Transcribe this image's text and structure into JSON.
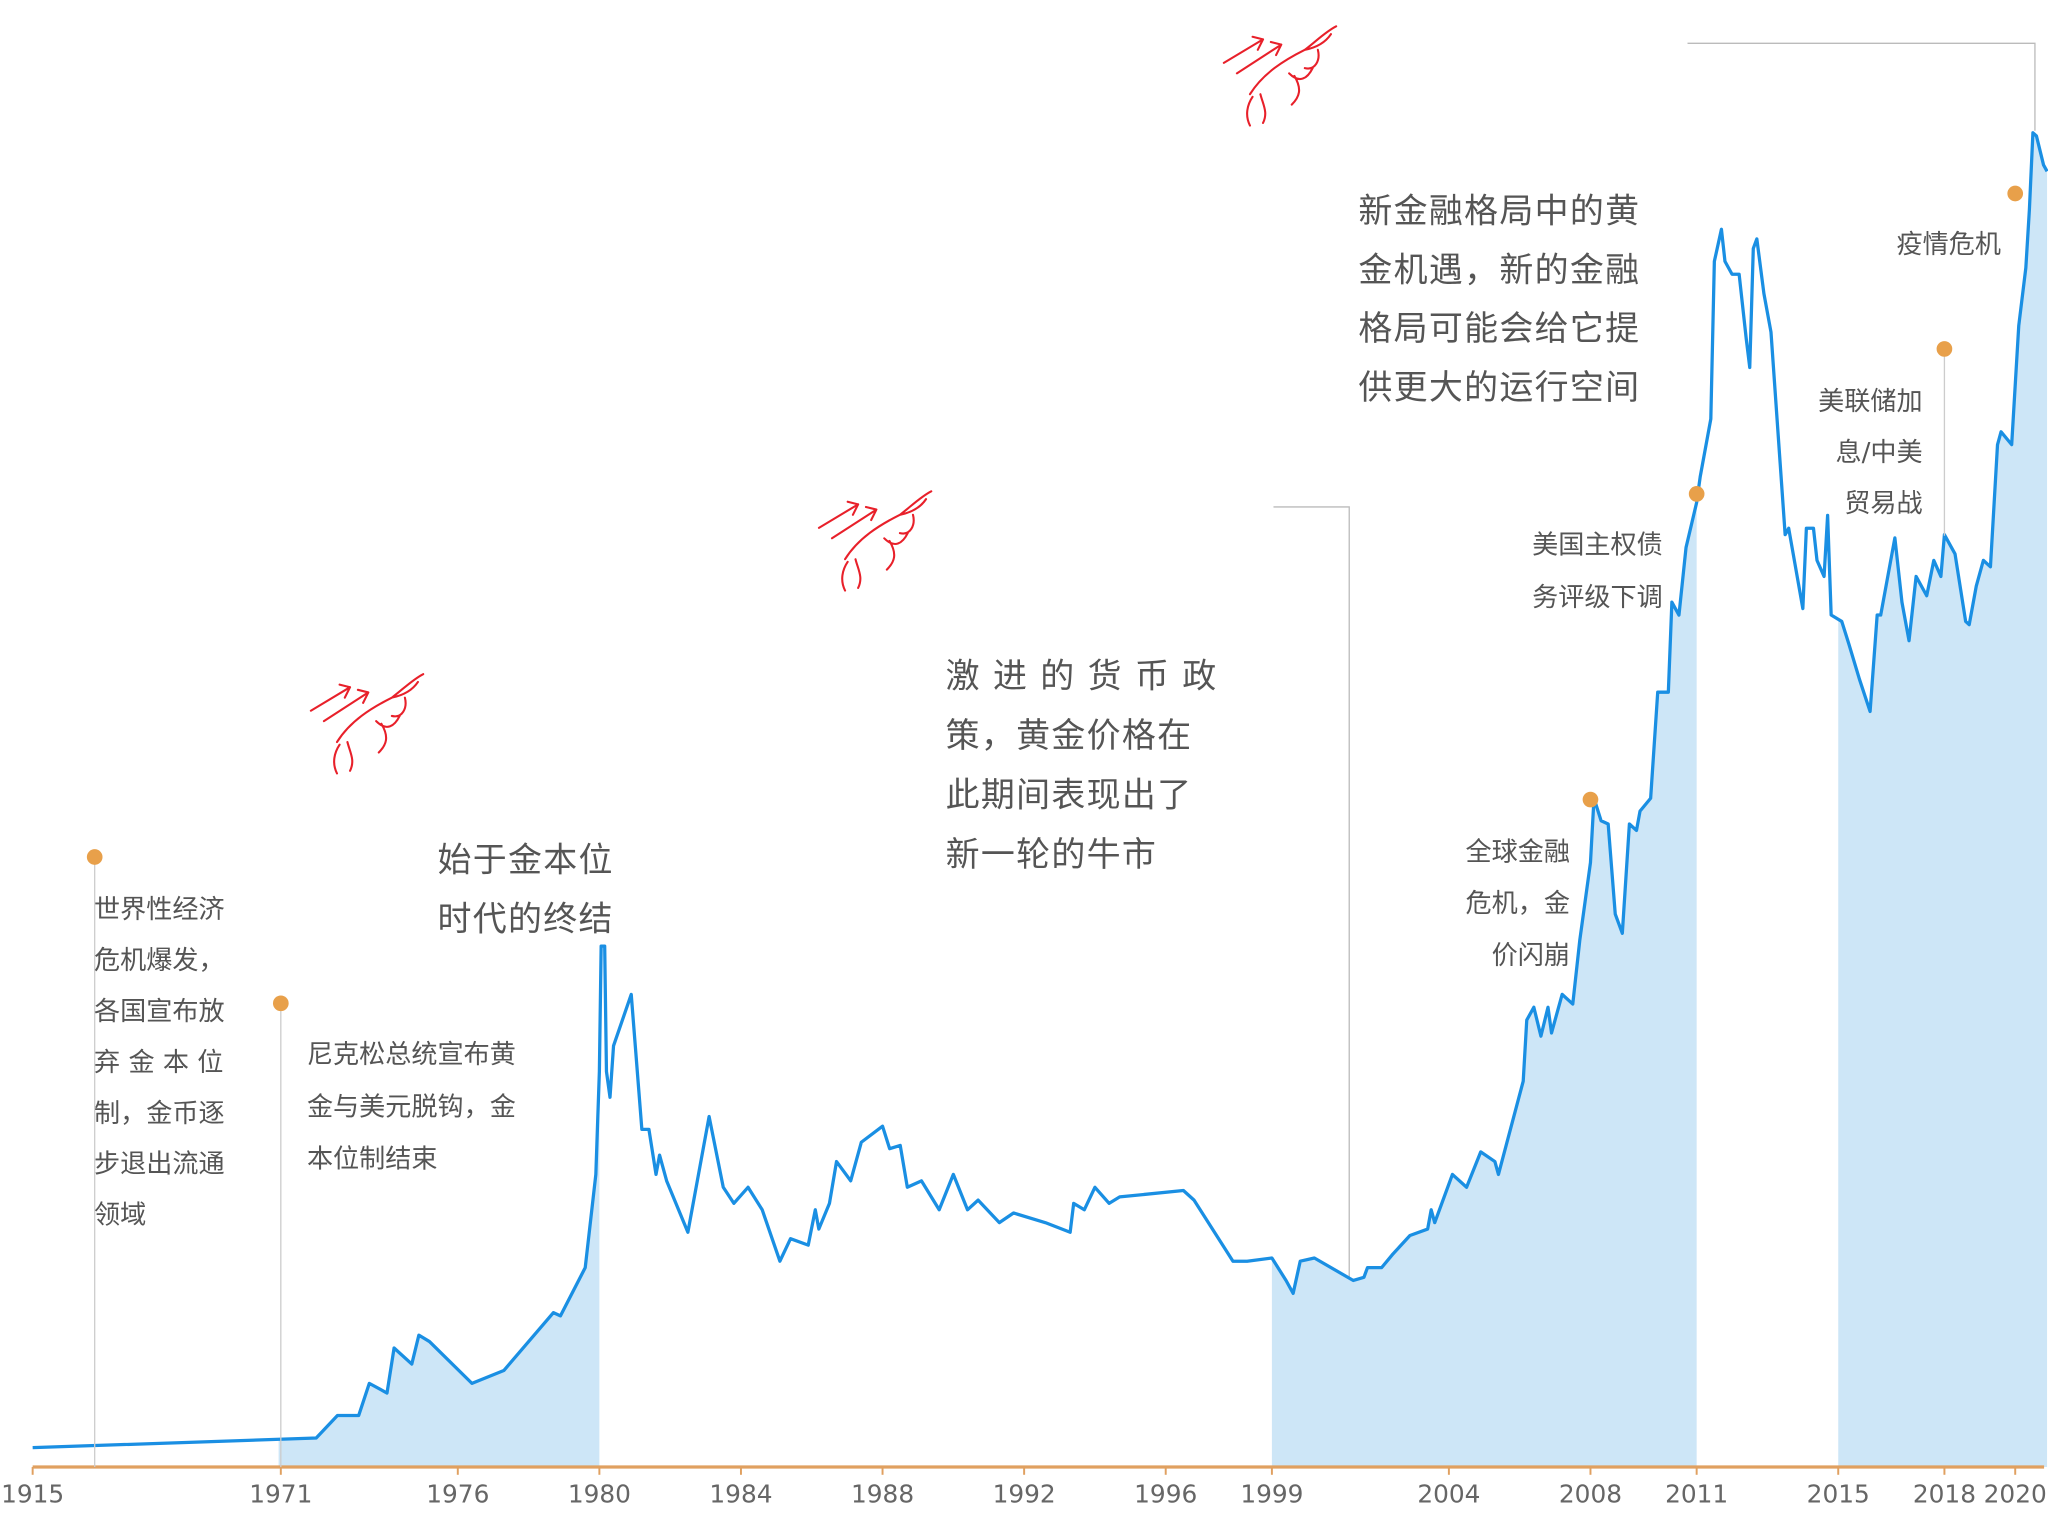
{
  "chart_data": {
    "type": "line",
    "x": [
      1915,
      1972.0,
      1972.6,
      1973.2,
      1973.5,
      1974.0,
      1974.2,
      1974.7,
      1974.9,
      1975.2,
      1976.4,
      1977.3,
      1978.7,
      1978.9,
      1979.6,
      1979.9,
      1980.0,
      1980.05,
      1980.15,
      1980.2,
      1980.3,
      1980.4,
      1980.9,
      1981.2,
      1981.4,
      1981.6,
      1981.7,
      1981.9,
      1982.5,
      1983.1,
      1983.5,
      1983.8,
      1984.2,
      1984.6,
      1985.1,
      1985.4,
      1985.9,
      1986.1,
      1986.2,
      1986.5,
      1986.7,
      1987.1,
      1987.4,
      1988.0,
      1988.2,
      1988.5,
      1988.7,
      1989.1,
      1989.6,
      1990.0,
      1990.4,
      1990.7,
      1991.3,
      1991.7,
      1992.6,
      1993.3,
      1993.4,
      1993.7,
      1994.0,
      1994.4,
      1994.7,
      1996.5,
      1996.8,
      1997.9,
      1998.3,
      1999.0,
      1999.4,
      1999.6,
      1999.8,
      2000.2,
      2001.3,
      2001.6,
      2001.7,
      2002.1,
      2002.4,
      2002.9,
      2003.4,
      2003.5,
      2003.6,
      2004.1,
      2004.5,
      2004.9,
      2005.3,
      2005.4,
      2006.1,
      2006.2,
      2006.4,
      2006.6,
      2006.8,
      2006.9,
      2007.2,
      2007.5,
      2007.7,
      2008.0,
      2008.1,
      2008.3,
      2008.5,
      2008.7,
      2008.9,
      2009.1,
      2009.3,
      2009.4,
      2009.7,
      2009.9,
      2010.2,
      2010.3,
      2010.5,
      2010.7,
      2011.0,
      2011.1,
      2011.4,
      2011.5,
      2011.7,
      2011.8,
      2012.0,
      2012.2,
      2012.4,
      2012.5,
      2012.6,
      2012.7,
      2012.9,
      2013.1,
      2013.5,
      2013.6,
      2014.0,
      2014.1,
      2014.3,
      2014.4,
      2014.6,
      2014.7,
      2014.8,
      2015.1,
      2015.3,
      2015.6,
      2015.9,
      2016.1,
      2016.2,
      2016.6,
      2016.8,
      2017.0,
      2017.2,
      2017.5,
      2017.7,
      2017.9,
      2018.0,
      2018.3,
      2018.6,
      2018.7,
      2018.9,
      2019.1,
      2019.3,
      2019.5,
      2019.6,
      2019.9,
      2020.1,
      2020.3,
      2020.4,
      2020.5,
      2020.6,
      2020.8,
      2020.9
    ],
    "series": [
      {
        "color": "#1a8fe3",
        "values": [
          30,
          45,
          80,
          80,
          130,
          115,
          185,
          160,
          205,
          195,
          130,
          150,
          240,
          235,
          310,
          455,
          615,
          810,
          810,
          615,
          575,
          655,
          735,
          525,
          525,
          455,
          485,
          445,
          365,
          545,
          435,
          410,
          435,
          400,
          320,
          355,
          345,
          400,
          370,
          410,
          475,
          445,
          505,
          530,
          495,
          500,
          435,
          445,
          400,
          455,
          400,
          415,
          380,
          395,
          380,
          365,
          410,
          400,
          435,
          410,
          420,
          430,
          415,
          320,
          320,
          325,
          290,
          270,
          320,
          325,
          290,
          295,
          310,
          310,
          330,
          360,
          370,
          400,
          380,
          455,
          435,
          490,
          475,
          455,
          600,
          695,
          715,
          670,
          715,
          675,
          735,
          720,
          820,
          940,
          1040,
          1005,
          1000,
          860,
          830,
          1000,
          990,
          1020,
          1040,
          1205,
          1205,
          1345,
          1325,
          1430,
          1500,
          1540,
          1630,
          1875,
          1925,
          1875,
          1855,
          1855,
          1755,
          1710,
          1895,
          1910,
          1825,
          1765,
          1450,
          1460,
          1335,
          1460,
          1460,
          1410,
          1385,
          1480,
          1325,
          1315,
          1280,
          1225,
          1175,
          1325,
          1325,
          1445,
          1345,
          1285,
          1385,
          1355,
          1410,
          1385,
          1450,
          1420,
          1315,
          1310,
          1370,
          1410,
          1400,
          1590,
          1610,
          1590,
          1775,
          1865,
          1955,
          2075,
          2070,
          2025,
          2015
        ]
      }
    ],
    "shaded_color": "#cde6f7",
    "shaded": [
      [
        1970.5,
        1980.0
      ],
      [
        1999.0,
        2011.0
      ],
      [
        2015.0,
        2021.0
      ]
    ],
    "xlim": [
      1915,
      2021
    ],
    "xticks": [
      1915,
      1971,
      1976,
      1980,
      1984,
      1988,
      1992,
      1996,
      1999,
      2004,
      2008,
      2011,
      2015,
      2018,
      2020
    ],
    "ylim": [
      0,
      2200
    ],
    "axis_color": "#e0a060",
    "events": [
      {
        "x": 1929,
        "label": [
          "世界性经济",
          "危机爆发，",
          "各国宣布放",
          "弃 金 本 位",
          "制，金币逐",
          "步退出流通",
          "领域"
        ]
      },
      {
        "x": 1971,
        "label": [
          "尼克松总统宣布黄",
          "金与美元脱钩，金",
          "本位制结束"
        ]
      },
      {
        "x": 2008,
        "label": [
          "全球金融",
          "危机，金",
          "价闪崩"
        ]
      },
      {
        "x": 2011,
        "label": [
          "美国主权债",
          "务评级下调"
        ]
      },
      {
        "x": 2018,
        "label": [
          "美联储加",
          "息/中美",
          "贸易战"
        ]
      },
      {
        "x": 2020,
        "label": [
          "疫情危机"
        ]
      }
    ],
    "event_color": "#e8a04a",
    "notes": [
      [
        "始于金本位",
        "时代的终结"
      ],
      [
        "激 进 的 货 币 政",
        "策，黄金价格在",
        "此期间表现出了",
        "新一轮的牛市"
      ],
      [
        "新金融格局中的黄",
        "金机遇，新的金融",
        "格局可能会给它提",
        "供更大的运行空间"
      ]
    ]
  }
}
